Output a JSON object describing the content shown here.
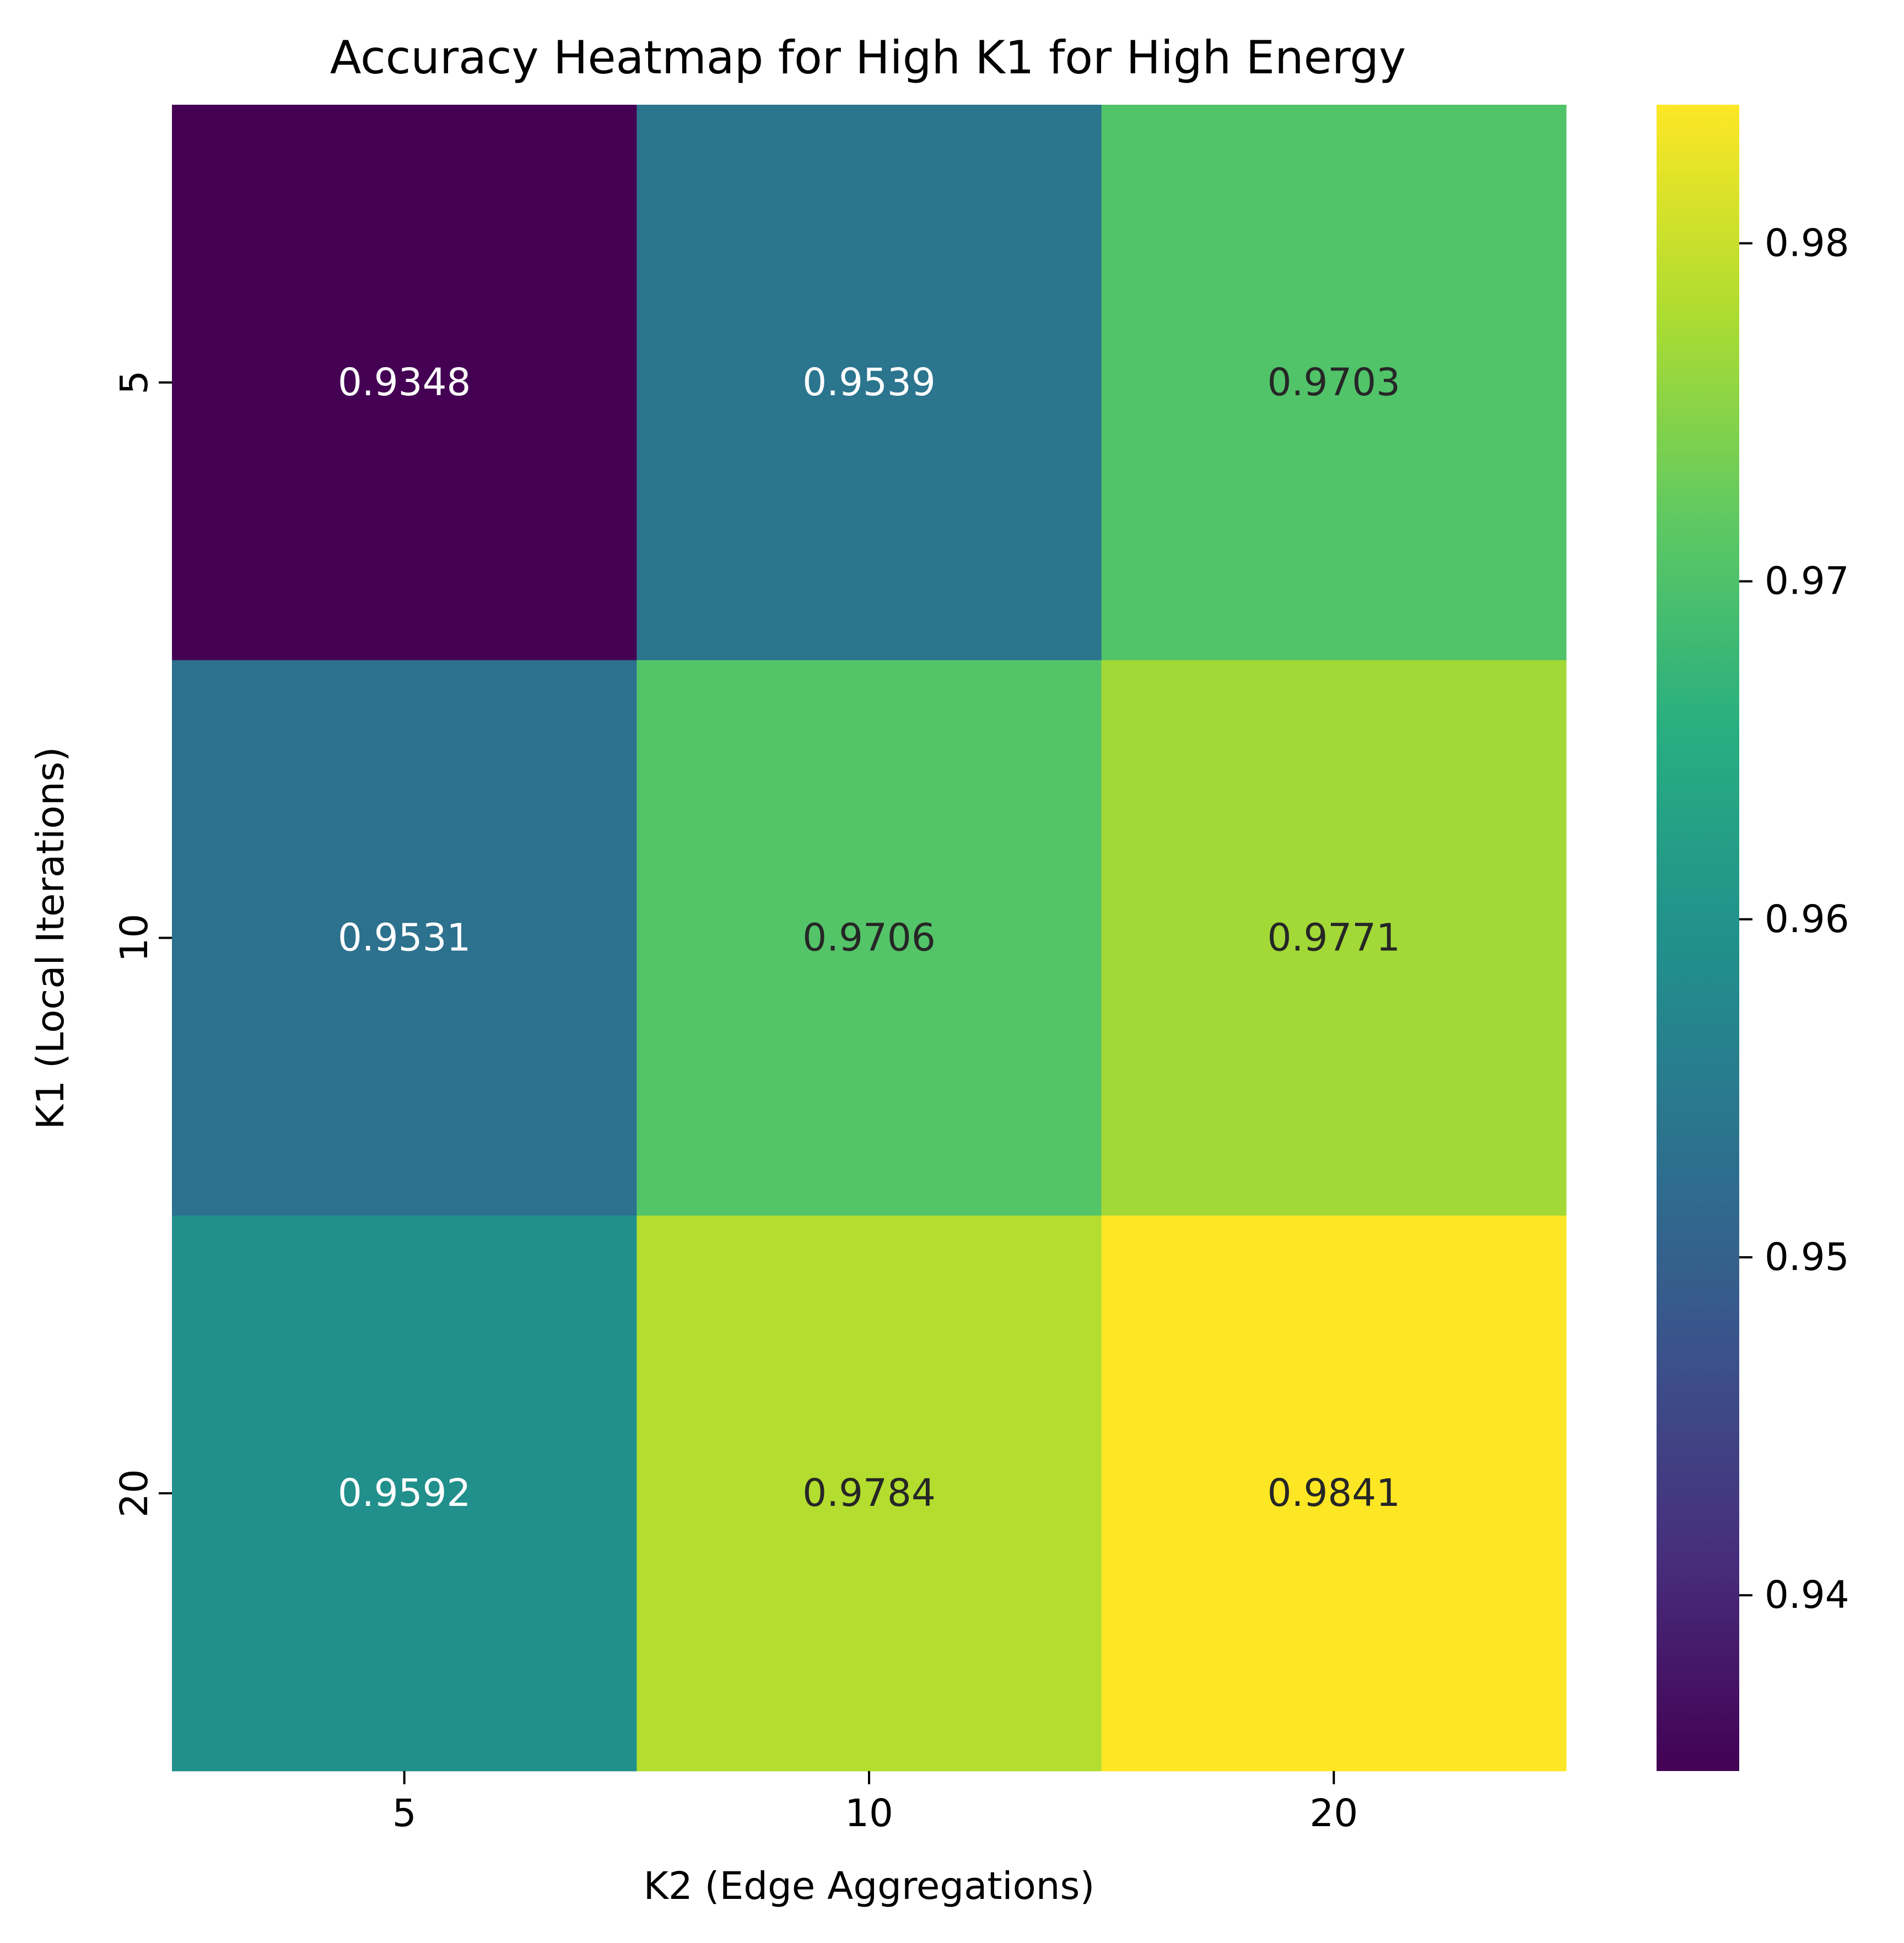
{
  "chart_data": {
    "type": "heatmap",
    "title": "Accuracy Heatmap for High K1 for High Energy",
    "xlabel": "K2 (Edge Aggregations)",
    "ylabel": "K1 (Local Iterations)",
    "x_categories": [
      "5",
      "10",
      "20"
    ],
    "y_categories": [
      "5",
      "10",
      "20"
    ],
    "values": [
      [
        0.9348,
        0.9539,
        0.9703
      ],
      [
        0.9531,
        0.9706,
        0.9771
      ],
      [
        0.9592,
        0.9784,
        0.9841
      ]
    ],
    "cell_labels": [
      [
        "0.9348",
        "0.9539",
        "0.9703"
      ],
      [
        "0.9531",
        "0.9706",
        "0.9771"
      ],
      [
        "0.9592",
        "0.9784",
        "0.9841"
      ]
    ],
    "colormap": "viridis",
    "colorbar": {
      "range": [
        0.9348,
        0.9841
      ],
      "ticks": [
        0.94,
        0.95,
        0.96,
        0.97,
        0.98
      ],
      "tick_labels": [
        "0.94",
        "0.95",
        "0.96",
        "0.97",
        "0.98"
      ]
    },
    "label_colors": {
      "dark": "#262626",
      "light": "#ffffff"
    }
  }
}
